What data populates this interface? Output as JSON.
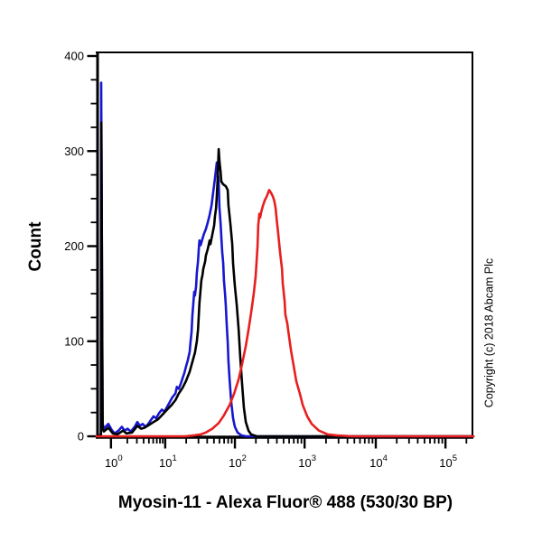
{
  "figure": {
    "ylabel": "Count",
    "xlabel": "Myosin-11 - Alexa Fluor® 488 (530/30 BP)",
    "copyright": "Copyright (c) 2018 Abcam Plc"
  },
  "chart_data": {
    "type": "line",
    "subtype": "flow-cytometry-histogram",
    "title": "Myosin-11 - Alexa Fluor® 488 (530/30 BP)",
    "xlabel": "Myosin-11 - Alexa Fluor® 488 (530/30 BP)",
    "ylabel": "Count",
    "x_scale": "log",
    "grid": false,
    "legend": "none",
    "ylim": [
      0,
      400
    ],
    "y_major_step": 100,
    "y_minor_step": 25,
    "x_ticks": [
      {
        "base": "10",
        "exp": "0",
        "u": 0.038
      },
      {
        "base": "10",
        "exp": "1",
        "u": 0.182
      },
      {
        "base": "10",
        "exp": "2",
        "u": 0.367
      },
      {
        "base": "10",
        "exp": "3",
        "u": 0.552
      },
      {
        "base": "10",
        "exp": "4",
        "u": 0.741
      },
      {
        "base": "10",
        "exp": "5",
        "u": 0.926
      }
    ],
    "axis_color": "#000000",
    "series": [
      {
        "name": "blue-curve",
        "color": "#1717cf",
        "peak": {
          "count": 288,
          "note": "off-scale pileup spike ~372 at axis origin"
        },
        "points": [
          [
            0.0,
            0
          ],
          [
            0.009,
            1
          ],
          [
            0.011,
            3
          ],
          [
            0.012,
            372
          ],
          [
            0.014,
            200
          ],
          [
            0.0155,
            14
          ],
          [
            0.019,
            8
          ],
          [
            0.031,
            13
          ],
          [
            0.041,
            6
          ],
          [
            0.048,
            3
          ],
          [
            0.058,
            6
          ],
          [
            0.067,
            10
          ],
          [
            0.074,
            6
          ],
          [
            0.082,
            8
          ],
          [
            0.091,
            5
          ],
          [
            0.101,
            10
          ],
          [
            0.108,
            15
          ],
          [
            0.115,
            11
          ],
          [
            0.122,
            13
          ],
          [
            0.13,
            10
          ],
          [
            0.137,
            13
          ],
          [
            0.144,
            17
          ],
          [
            0.151,
            21
          ],
          [
            0.158,
            19
          ],
          [
            0.165,
            24
          ],
          [
            0.173,
            28
          ],
          [
            0.18,
            26
          ],
          [
            0.187,
            31
          ],
          [
            0.194,
            36
          ],
          [
            0.201,
            41
          ],
          [
            0.209,
            45
          ],
          [
            0.213,
            52
          ],
          [
            0.218,
            50
          ],
          [
            0.223,
            55
          ],
          [
            0.228,
            61
          ],
          [
            0.233,
            67
          ],
          [
            0.237,
            73
          ],
          [
            0.242,
            80
          ],
          [
            0.247,
            89
          ],
          [
            0.249,
            98
          ],
          [
            0.252,
            110
          ],
          [
            0.254,
            126
          ],
          [
            0.257,
            142
          ],
          [
            0.259,
            152
          ],
          [
            0.261,
            148
          ],
          [
            0.264,
            158
          ],
          [
            0.266,
            172
          ],
          [
            0.269,
            184
          ],
          [
            0.271,
            196
          ],
          [
            0.273,
            206
          ],
          [
            0.276,
            201
          ],
          [
            0.281,
            208
          ],
          [
            0.285,
            213
          ],
          [
            0.29,
            218
          ],
          [
            0.295,
            225
          ],
          [
            0.3,
            233
          ],
          [
            0.305,
            243
          ],
          [
            0.309,
            256
          ],
          [
            0.314,
            271
          ],
          [
            0.319,
            288
          ],
          [
            0.321,
            280
          ],
          [
            0.324,
            267
          ],
          [
            0.326,
            241
          ],
          [
            0.329,
            224
          ],
          [
            0.331,
            210
          ],
          [
            0.333,
            195
          ],
          [
            0.336,
            182
          ],
          [
            0.338,
            164
          ],
          [
            0.341,
            149
          ],
          [
            0.343,
            137
          ],
          [
            0.345,
            119
          ],
          [
            0.348,
            99
          ],
          [
            0.35,
            79
          ],
          [
            0.353,
            59
          ],
          [
            0.357,
            37
          ],
          [
            0.362,
            19
          ],
          [
            0.367,
            10
          ],
          [
            0.374,
            4
          ],
          [
            0.384,
            1
          ],
          [
            0.396,
            0
          ],
          [
            1.0,
            0
          ]
        ]
      },
      {
        "name": "black-curve",
        "color": "#000000",
        "peak": {
          "count": 302
        },
        "points": [
          [
            0.0,
            0
          ],
          [
            0.01,
            1
          ],
          [
            0.0115,
            2
          ],
          [
            0.0125,
            330
          ],
          [
            0.0145,
            140
          ],
          [
            0.016,
            8
          ],
          [
            0.019,
            5
          ],
          [
            0.031,
            9
          ],
          [
            0.043,
            3
          ],
          [
            0.055,
            2
          ],
          [
            0.07,
            6
          ],
          [
            0.079,
            3
          ],
          [
            0.094,
            4
          ],
          [
            0.108,
            11
          ],
          [
            0.118,
            8
          ],
          [
            0.127,
            9
          ],
          [
            0.139,
            12
          ],
          [
            0.151,
            15
          ],
          [
            0.163,
            18
          ],
          [
            0.175,
            23
          ],
          [
            0.187,
            28
          ],
          [
            0.199,
            33
          ],
          [
            0.209,
            38
          ],
          [
            0.218,
            45
          ],
          [
            0.228,
            51
          ],
          [
            0.237,
            58
          ],
          [
            0.247,
            68
          ],
          [
            0.254,
            78
          ],
          [
            0.261,
            88
          ],
          [
            0.266,
            100
          ],
          [
            0.269,
            112
          ],
          [
            0.271,
            126
          ],
          [
            0.273,
            140
          ],
          [
            0.276,
            155
          ],
          [
            0.278,
            164
          ],
          [
            0.281,
            170
          ],
          [
            0.283,
            176
          ],
          [
            0.288,
            184
          ],
          [
            0.29,
            190
          ],
          [
            0.295,
            197
          ],
          [
            0.3,
            206
          ],
          [
            0.302,
            202
          ],
          [
            0.307,
            212
          ],
          [
            0.312,
            222
          ],
          [
            0.314,
            231
          ],
          [
            0.317,
            240
          ],
          [
            0.319,
            253
          ],
          [
            0.321,
            270
          ],
          [
            0.324,
            302
          ],
          [
            0.326,
            290
          ],
          [
            0.329,
            278
          ],
          [
            0.331,
            268
          ],
          [
            0.336,
            265
          ],
          [
            0.343,
            263
          ],
          [
            0.348,
            259
          ],
          [
            0.35,
            243
          ],
          [
            0.355,
            224
          ],
          [
            0.36,
            202
          ],
          [
            0.362,
            182
          ],
          [
            0.367,
            158
          ],
          [
            0.372,
            138
          ],
          [
            0.377,
            112
          ],
          [
            0.381,
            84
          ],
          [
            0.386,
            55
          ],
          [
            0.391,
            30
          ],
          [
            0.396,
            15
          ],
          [
            0.403,
            6
          ],
          [
            0.41,
            2
          ],
          [
            0.425,
            0
          ],
          [
            1.0,
            0
          ]
        ]
      },
      {
        "name": "red-curve",
        "color": "#e71f1f",
        "peak": {
          "count": 259
        },
        "points": [
          [
            0.0,
            0
          ],
          [
            0.235,
            0
          ],
          [
            0.259,
            1
          ],
          [
            0.276,
            2
          ],
          [
            0.29,
            4
          ],
          [
            0.307,
            8
          ],
          [
            0.324,
            14
          ],
          [
            0.338,
            22
          ],
          [
            0.353,
            33
          ],
          [
            0.365,
            45
          ],
          [
            0.377,
            60
          ],
          [
            0.386,
            76
          ],
          [
            0.396,
            95
          ],
          [
            0.403,
            112
          ],
          [
            0.41,
            130
          ],
          [
            0.417,
            150
          ],
          [
            0.422,
            168
          ],
          [
            0.427,
            200
          ],
          [
            0.429,
            222
          ],
          [
            0.432,
            234
          ],
          [
            0.434,
            230
          ],
          [
            0.437,
            236
          ],
          [
            0.441,
            242
          ],
          [
            0.446,
            248
          ],
          [
            0.451,
            252
          ],
          [
            0.458,
            259
          ],
          [
            0.463,
            256
          ],
          [
            0.468,
            252
          ],
          [
            0.472,
            247
          ],
          [
            0.475,
            240
          ],
          [
            0.478,
            228
          ],
          [
            0.482,
            213
          ],
          [
            0.487,
            193
          ],
          [
            0.492,
            176
          ],
          [
            0.494,
            161
          ],
          [
            0.499,
            142
          ],
          [
            0.501,
            128
          ],
          [
            0.506,
            119
          ],
          [
            0.511,
            104
          ],
          [
            0.516,
            90
          ],
          [
            0.523,
            74
          ],
          [
            0.53,
            58
          ],
          [
            0.54,
            44
          ],
          [
            0.547,
            33
          ],
          [
            0.559,
            21
          ],
          [
            0.571,
            13
          ],
          [
            0.59,
            6
          ],
          [
            0.614,
            2
          ],
          [
            0.636,
            1
          ],
          [
            0.679,
            0
          ],
          [
            1.0,
            0
          ]
        ]
      }
    ]
  }
}
